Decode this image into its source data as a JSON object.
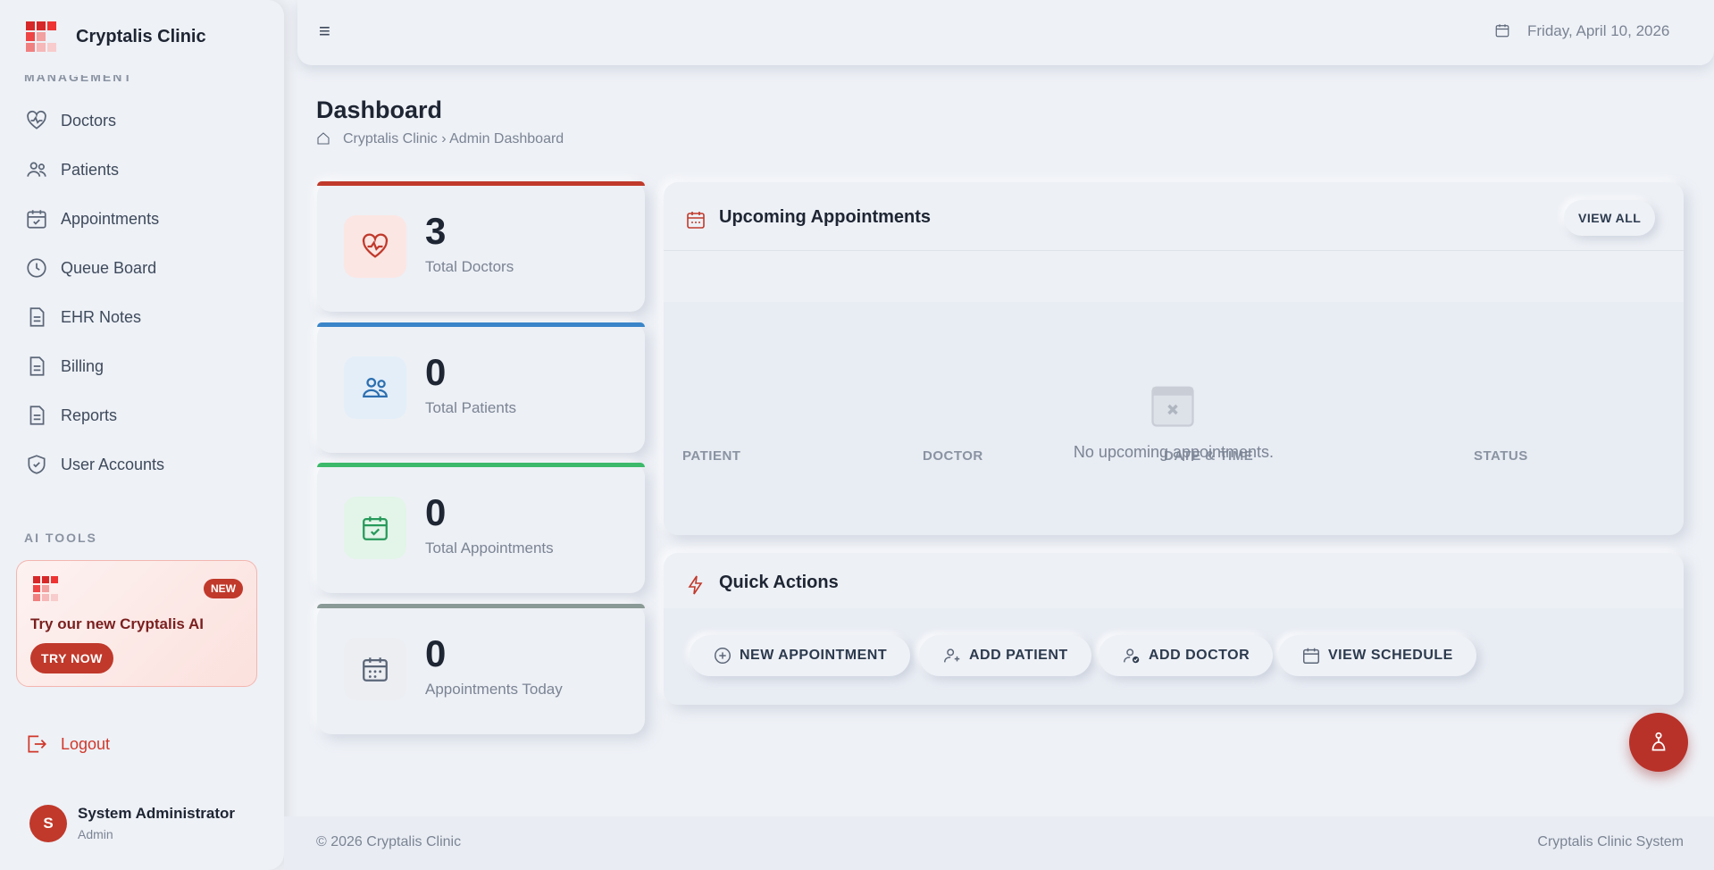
{
  "sidebar": {
    "brand": "Cryptalis Clinic",
    "section_management": "MANAGEMENT",
    "nav": [
      "Doctors",
      "Patients",
      "Appointments",
      "Queue Board",
      "EHR Notes",
      "Billing",
      "Reports",
      "User Accounts"
    ],
    "section_ai": "AI TOOLS",
    "promo": {
      "badge": "NEW",
      "text": "Try our new Cryptalis AI",
      "button": "TRY NOW"
    },
    "logout": "Logout",
    "user": {
      "initial": "S",
      "name": "System Administrator",
      "role": "Admin"
    }
  },
  "topbar": {
    "menu": "≡",
    "date": "Friday, April 10, 2026"
  },
  "page": {
    "title": "Dashboard",
    "breadcrumb": "Cryptalis Clinic › Admin Dashboard"
  },
  "stats": [
    {
      "value": "3",
      "label": "Total Doctors"
    },
    {
      "value": "0",
      "label": "Total Patients"
    },
    {
      "value": "0",
      "label": "Total Appointments"
    },
    {
      "value": "0",
      "label": "Appointments Today"
    }
  ],
  "upcoming": {
    "title": "Upcoming Appointments",
    "button": "VIEW ALL",
    "columns": [
      "PATIENT",
      "DOCTOR",
      "DATE & TIME",
      "STATUS"
    ],
    "empty": "No upcoming appointments."
  },
  "quick_actions": {
    "title": "Quick Actions",
    "buttons": [
      "NEW APPOINTMENT",
      "ADD PATIENT",
      "ADD DOCTOR",
      "VIEW SCHEDULE"
    ]
  },
  "footer": {
    "left": "© 2026 Cryptalis Clinic",
    "right": "Cryptalis Clinic System"
  }
}
